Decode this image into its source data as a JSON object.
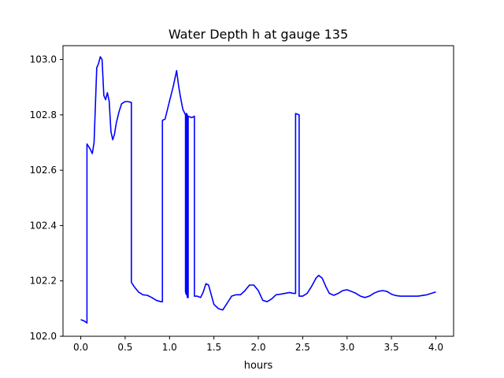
{
  "chart_data": {
    "type": "line",
    "title": "Water Depth h at gauge 135",
    "xlabel": "hours",
    "ylabel": "",
    "xlim": [
      -0.2,
      4.2
    ],
    "ylim": [
      102.0,
      103.05
    ],
    "xticks": [
      0.0,
      0.5,
      1.0,
      1.5,
      2.0,
      2.5,
      3.0,
      3.5,
      4.0
    ],
    "xtick_labels": [
      "0.0",
      "0.5",
      "1.0",
      "1.5",
      "2.0",
      "2.5",
      "3.0",
      "3.5",
      "4.0"
    ],
    "yticks": [
      102.0,
      102.2,
      102.4,
      102.6,
      102.8,
      103.0
    ],
    "ytick_labels": [
      "102.0",
      "102.2",
      "102.4",
      "102.6",
      "102.8",
      "103.0"
    ],
    "grid": false,
    "series": [
      {
        "color": "#0000ff",
        "x": [
          0.0,
          0.04,
          0.07,
          0.07,
          0.1,
          0.13,
          0.15,
          0.18,
          0.2,
          0.22,
          0.24,
          0.26,
          0.28,
          0.3,
          0.32,
          0.34,
          0.36,
          0.38,
          0.4,
          0.43,
          0.46,
          0.5,
          0.53,
          0.57,
          0.57,
          0.6,
          0.65,
          0.7,
          0.75,
          0.8,
          0.85,
          0.9,
          0.92,
          0.92,
          0.95,
          1.0,
          1.04,
          1.06,
          1.08,
          1.1,
          1.12,
          1.15,
          1.18,
          1.18,
          1.19,
          1.19,
          1.2,
          1.2,
          1.21,
          1.21,
          1.25,
          1.28,
          1.28,
          1.31,
          1.35,
          1.38,
          1.41,
          1.44,
          1.47,
          1.5,
          1.55,
          1.6,
          1.65,
          1.7,
          1.75,
          1.8,
          1.85,
          1.9,
          1.95,
          2.0,
          2.05,
          2.1,
          2.15,
          2.2,
          2.25,
          2.3,
          2.35,
          2.38,
          2.4,
          2.42,
          2.42,
          2.46,
          2.46,
          2.5,
          2.55,
          2.6,
          2.65,
          2.68,
          2.72,
          2.76,
          2.8,
          2.85,
          2.9,
          2.95,
          3.0,
          3.05,
          3.1,
          3.15,
          3.2,
          3.25,
          3.3,
          3.35,
          3.4,
          3.45,
          3.5,
          3.55,
          3.6,
          3.7,
          3.8,
          3.9,
          4.0
        ],
        "y": [
          102.06,
          102.055,
          102.048,
          102.695,
          102.68,
          102.66,
          102.7,
          102.97,
          102.985,
          103.01,
          103.0,
          102.87,
          102.855,
          102.88,
          102.85,
          102.74,
          102.71,
          102.73,
          102.77,
          102.81,
          102.84,
          102.848,
          102.848,
          102.845,
          102.195,
          102.18,
          102.16,
          102.15,
          102.148,
          102.14,
          102.13,
          102.125,
          102.125,
          102.78,
          102.785,
          102.85,
          102.9,
          102.93,
          102.96,
          102.91,
          102.87,
          102.82,
          102.8,
          102.16,
          102.15,
          102.805,
          102.8,
          102.14,
          102.14,
          102.795,
          102.79,
          102.795,
          102.145,
          102.145,
          102.14,
          102.16,
          102.19,
          102.185,
          102.15,
          102.115,
          102.1,
          102.095,
          102.12,
          102.145,
          102.15,
          102.15,
          102.165,
          102.185,
          102.185,
          102.165,
          102.13,
          102.125,
          102.135,
          102.15,
          102.152,
          102.155,
          102.158,
          102.156,
          102.155,
          102.155,
          102.805,
          102.8,
          102.145,
          102.145,
          102.155,
          102.18,
          102.21,
          102.22,
          102.21,
          102.18,
          102.155,
          102.148,
          102.155,
          102.165,
          102.168,
          102.162,
          102.155,
          102.145,
          102.14,
          102.145,
          102.155,
          102.162,
          102.165,
          102.162,
          102.152,
          102.147,
          102.145,
          102.145,
          102.145,
          102.15,
          102.16
        ]
      }
    ]
  }
}
